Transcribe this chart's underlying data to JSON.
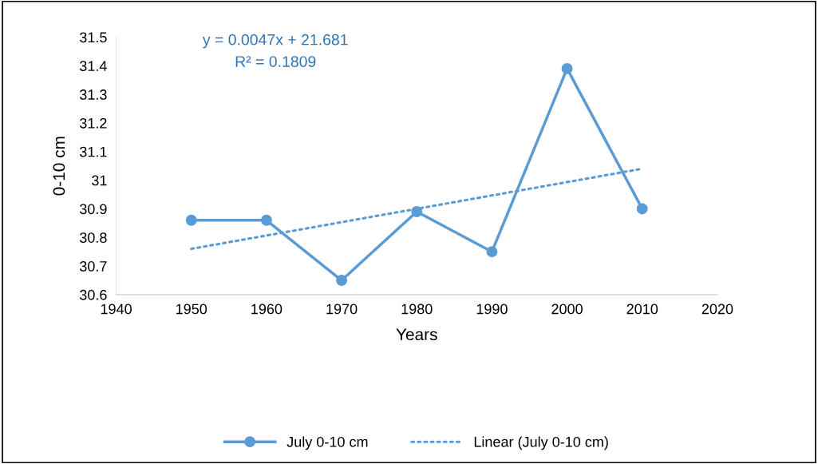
{
  "chart_data": {
    "type": "line",
    "xlabel": "Years",
    "ylabel": "0-10 cm",
    "x": [
      1950,
      1960,
      1970,
      1980,
      1990,
      2000,
      2010
    ],
    "series": [
      {
        "name": "July 0-10 cm",
        "color": "#5b9bd5",
        "marker": "circle",
        "line_style": "solid",
        "values": [
          30.86,
          30.86,
          30.65,
          30.89,
          30.75,
          31.39,
          30.9
        ]
      },
      {
        "name": "Linear (July 0-10 cm)",
        "color": "#5b9bd5",
        "marker": "none",
        "line_style": "dotted",
        "x": [
          1950,
          2010
        ],
        "values": [
          30.76,
          31.04
        ]
      }
    ],
    "xlim": [
      1940,
      2020
    ],
    "xticks": [
      1940,
      1950,
      1960,
      1970,
      1980,
      1990,
      2000,
      2010,
      2020
    ],
    "ylim": [
      30.6,
      31.5
    ],
    "yticks": [
      30.6,
      30.7,
      30.8,
      30.9,
      31,
      31.1,
      31.2,
      31.3,
      31.4,
      31.5
    ],
    "annotations": [
      "y = 0.0047x + 21.681",
      "R² = 0.1809"
    ],
    "grid": false,
    "legend": "bottom"
  }
}
